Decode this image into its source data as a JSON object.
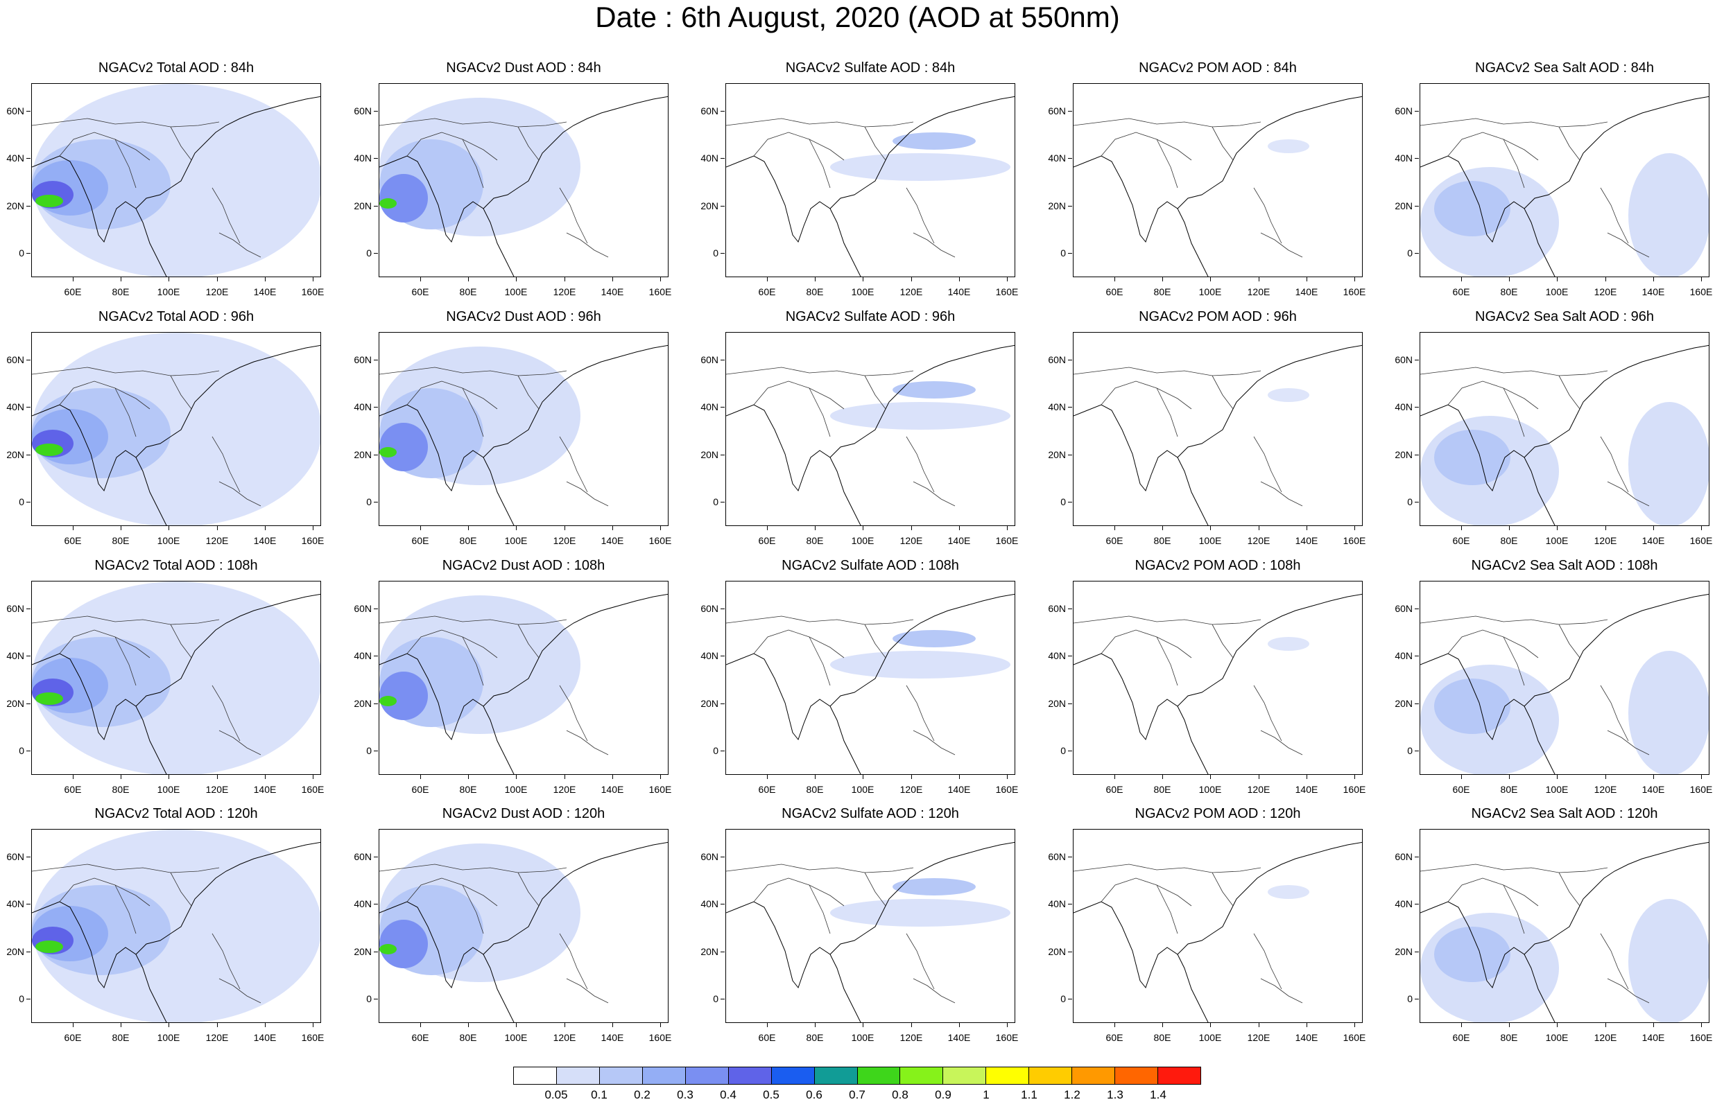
{
  "title": "Date : 6th August, 2020 (AOD at 550nm)",
  "lat_labels": [
    "60N",
    "40N",
    "20N",
    "0"
  ],
  "lon_labels": [
    "60E",
    "80E",
    "100E",
    "120E",
    "140E",
    "160E"
  ],
  "panels": [
    [
      "NGACv2 Total AOD : 84h",
      "NGACv2 Dust AOD : 84h",
      "NGACv2 Sulfate AOD : 84h",
      "NGACv2 POM AOD : 84h",
      "NGACv2 Sea Salt AOD : 84h"
    ],
    [
      "NGACv2 Total AOD : 96h",
      "NGACv2 Dust AOD : 96h",
      "NGACv2 Sulfate AOD : 96h",
      "NGACv2 POM AOD : 96h",
      "NGACv2 Sea Salt AOD : 96h"
    ],
    [
      "NGACv2 Total AOD : 108h",
      "NGACv2 Dust AOD : 108h",
      "NGACv2 Sulfate AOD : 108h",
      "NGACv2 POM AOD : 108h",
      "NGACv2 Sea Salt AOD : 108h"
    ],
    [
      "NGACv2 Total AOD : 120h",
      "NGACv2 Dust AOD : 120h",
      "NGACv2 Sulfate AOD : 120h",
      "NGACv2 POM AOD : 120h",
      "NGACv2 Sea Salt  AOD : 120h"
    ]
  ],
  "colorbar": {
    "labels": [
      "0.05",
      "0.1",
      "0.2",
      "0.3",
      "0.4",
      "0.5",
      "0.6",
      "0.7",
      "0.8",
      "0.9",
      "1",
      "1.1",
      "1.2",
      "1.3",
      "1.4"
    ],
    "colors": [
      "#ffffff",
      "#d6dff9",
      "#b6c8f7",
      "#94aef5",
      "#7a8ff2",
      "#5f63e8",
      "#1a5df0",
      "#119c96",
      "#3ed61b",
      "#86f21a",
      "#c8f55a",
      "#ffff00",
      "#ffcc00",
      "#ff9900",
      "#ff6600",
      "#ff1a0d"
    ]
  }
}
